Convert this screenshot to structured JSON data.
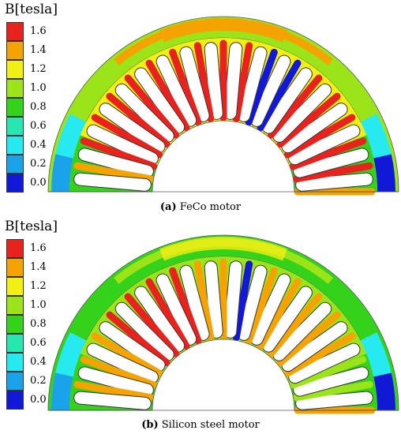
{
  "panels": [
    {
      "legend_title": "B[tesla]",
      "legend_labels": [
        "1.6",
        "1.4",
        "1.2",
        "1.0",
        "0.8",
        "0.6",
        "0.4",
        "0.2",
        "0.0"
      ],
      "caption_tag": "(a)",
      "caption_text": " FeCo motor"
    },
    {
      "legend_title": "B[tesla]",
      "legend_labels": [
        "1.6",
        "1.4",
        "1.2",
        "1.0",
        "0.8",
        "0.6",
        "0.4",
        "0.2",
        "0.0"
      ],
      "caption_tag": "(b)",
      "caption_text": " Silicon steel motor"
    }
  ],
  "colors": {
    "scale": [
      "#e8231e",
      "#f5a300",
      "#f2ef14",
      "#9ce41a",
      "#35d21b",
      "#27e6b0",
      "#27e9f0",
      "#1aa3e9",
      "#1219d6"
    ]
  }
}
